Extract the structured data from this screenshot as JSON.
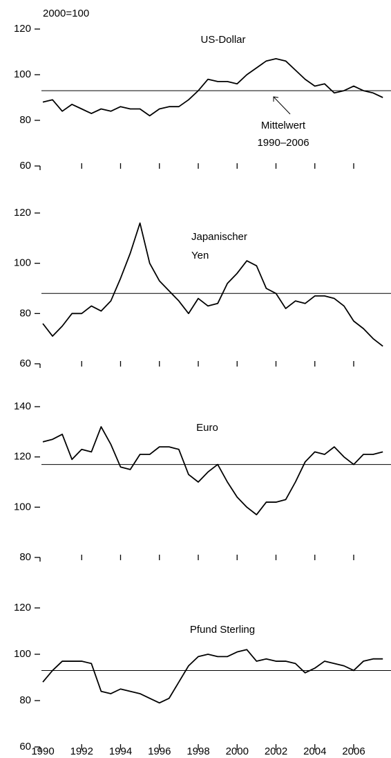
{
  "chart_data": [
    {
      "type": "line",
      "title": "US-Dollar",
      "unit": "2000=100",
      "annotation": [
        "Mittelwert",
        "1990–2006"
      ],
      "mean": 93,
      "ylim": [
        60,
        120
      ],
      "yticks": [
        60,
        80,
        100,
        120
      ],
      "xlim": [
        1990,
        2007.8
      ],
      "color": "#000000",
      "x": [
        1990,
        1990.5,
        1991,
        1991.5,
        1992,
        1992.5,
        1993,
        1993.5,
        1994,
        1994.5,
        1995,
        1995.5,
        1996,
        1996.5,
        1997,
        1997.5,
        1998,
        1998.5,
        1999,
        1999.5,
        2000,
        2000.5,
        2001,
        2001.5,
        2002,
        2002.5,
        2003,
        2003.5,
        2004,
        2004.5,
        2005,
        2005.5,
        2006,
        2006.5,
        2007,
        2007.5
      ],
      "values": [
        88,
        89,
        84,
        87,
        85,
        83,
        85,
        84,
        86,
        85,
        85,
        82,
        85,
        86,
        86,
        89,
        93,
        98,
        97,
        97,
        96,
        100,
        103,
        106,
        107,
        106,
        102,
        98,
        95,
        96,
        92,
        93,
        95,
        93,
        92,
        90
      ]
    },
    {
      "type": "line",
      "title": [
        "Japanischer",
        "Yen"
      ],
      "mean": 88,
      "ylim": [
        60,
        120
      ],
      "yticks": [
        60,
        80,
        100,
        120
      ],
      "xlim": [
        1990,
        2007.8
      ],
      "color": "#000000",
      "x": [
        1990,
        1990.5,
        1991,
        1991.5,
        1992,
        1992.5,
        1993,
        1993.5,
        1994,
        1994.5,
        1995,
        1995.5,
        1996,
        1996.5,
        1997,
        1997.5,
        1998,
        1998.5,
        1999,
        1999.5,
        2000,
        2000.5,
        2001,
        2001.5,
        2002,
        2002.5,
        2003,
        2003.5,
        2004,
        2004.5,
        2005,
        2005.5,
        2006,
        2006.5,
        2007,
        2007.5
      ],
      "values": [
        76,
        71,
        75,
        80,
        80,
        83,
        81,
        85,
        94,
        104,
        116,
        100,
        93,
        89,
        85,
        80,
        86,
        83,
        84,
        92,
        96,
        101,
        99,
        90,
        88,
        82,
        85,
        84,
        87,
        87,
        86,
        83,
        77,
        74,
        70,
        67
      ]
    },
    {
      "type": "line",
      "title": "Euro",
      "mean": 117,
      "ylim": [
        80,
        140
      ],
      "yticks": [
        80,
        100,
        120,
        140
      ],
      "xlim": [
        1990,
        2007.8
      ],
      "color": "#000000",
      "x": [
        1990,
        1990.5,
        1991,
        1991.5,
        1992,
        1992.5,
        1993,
        1993.5,
        1994,
        1994.5,
        1995,
        1995.5,
        1996,
        1996.5,
        1997,
        1997.5,
        1998,
        1998.5,
        1999,
        1999.5,
        2000,
        2000.5,
        2001,
        2001.5,
        2002,
        2002.5,
        2003,
        2003.5,
        2004,
        2004.5,
        2005,
        2005.5,
        2006,
        2006.5,
        2007,
        2007.5
      ],
      "values": [
        126,
        127,
        129,
        119,
        123,
        122,
        132,
        125,
        116,
        115,
        121,
        121,
        124,
        124,
        123,
        113,
        110,
        114,
        117,
        110,
        104,
        100,
        97,
        102,
        102,
        103,
        110,
        118,
        122,
        121,
        124,
        120,
        117,
        121,
        121,
        122
      ]
    },
    {
      "type": "line",
      "title": "Pfund Sterling",
      "mean": 93,
      "ylim": [
        60,
        120
      ],
      "yticks": [
        60,
        80,
        100,
        120
      ],
      "xlim": [
        1990,
        2007.8
      ],
      "color": "#000000",
      "xticks": [
        1990,
        1992,
        1994,
        1996,
        1998,
        2000,
        2002,
        2004,
        2006
      ],
      "x": [
        1990,
        1990.5,
        1991,
        1991.5,
        1992,
        1992.5,
        1993,
        1993.5,
        1994,
        1994.5,
        1995,
        1995.5,
        1996,
        1996.5,
        1997,
        1997.5,
        1998,
        1998.5,
        1999,
        1999.5,
        2000,
        2000.5,
        2001,
        2001.5,
        2002,
        2002.5,
        2003,
        2003.5,
        2004,
        2004.5,
        2005,
        2005.5,
        2006,
        2006.5,
        2007,
        2007.5
      ],
      "values": [
        88,
        93,
        97,
        97,
        97,
        96,
        84,
        83,
        85,
        84,
        83,
        81,
        79,
        81,
        88,
        95,
        99,
        100,
        99,
        99,
        101,
        102,
        97,
        98,
        97,
        97,
        96,
        92,
        94,
        97,
        96,
        95,
        93,
        97,
        98,
        98
      ]
    }
  ]
}
